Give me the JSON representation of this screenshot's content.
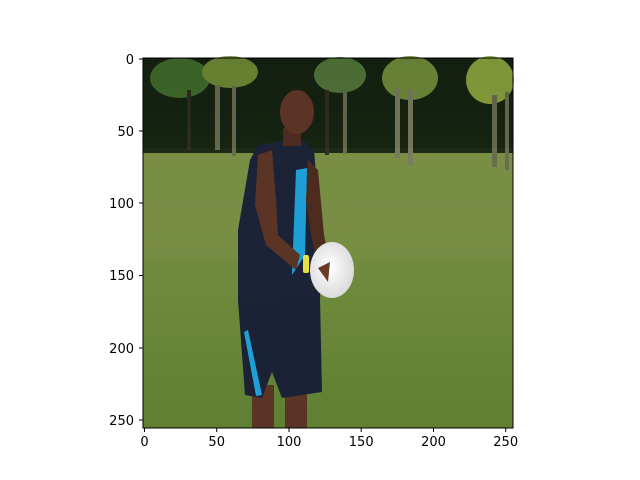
{
  "figure": {
    "description_icon": "photo-image-icon",
    "axes": {
      "x_ticks": [
        "0",
        "50",
        "100",
        "150",
        "200",
        "250"
      ],
      "y_ticks": [
        "0",
        "50",
        "100",
        "150",
        "200",
        "250"
      ]
    }
  },
  "colors": {
    "sky_trees_dark": "#1e2a16",
    "grass": "#6f8a3a",
    "shirt": "#1b2235",
    "accent_stripe": "#1e9fd6",
    "skin": "#5a3424",
    "disc": "#f2f2f2"
  }
}
